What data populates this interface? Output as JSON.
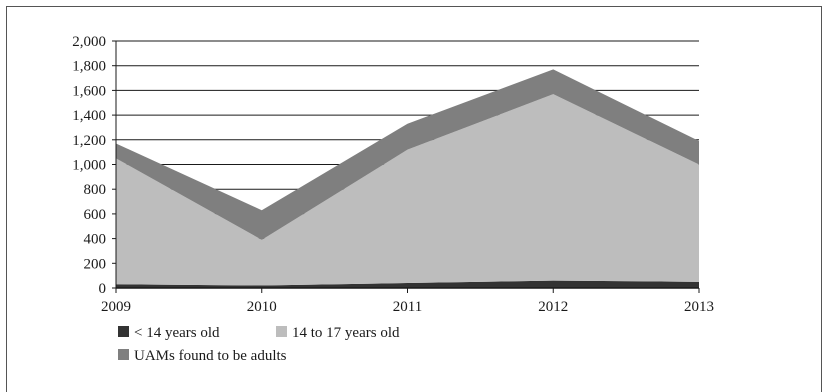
{
  "chart_data": {
    "type": "area",
    "stacked": true,
    "categories": [
      "2009",
      "2010",
      "2011",
      "2012",
      "2013"
    ],
    "series": [
      {
        "name": "< 14 years old",
        "values": [
          30,
          20,
          40,
          60,
          50
        ],
        "color": "#333333"
      },
      {
        "name": "14 to 17 years old",
        "values": [
          1020,
          370,
          1080,
          1510,
          950
        ],
        "color": "#bdbdbd"
      },
      {
        "name": "UAMs found to be adults",
        "values": [
          120,
          240,
          210,
          200,
          190
        ],
        "color": "#7f7f7f"
      }
    ],
    "ylim": [
      0,
      2000
    ],
    "yticks": [
      0,
      200,
      400,
      600,
      800,
      1000,
      1200,
      1400,
      1600,
      1800,
      2000
    ],
    "ytick_labels": [
      "0",
      "200",
      "400",
      "600",
      "800",
      "1,000",
      "1,200",
      "1,400",
      "1,600",
      "1,800",
      "2,000"
    ],
    "grid": true,
    "legend_position": "bottom-left",
    "title": "",
    "xlabel": "",
    "ylabel": ""
  }
}
